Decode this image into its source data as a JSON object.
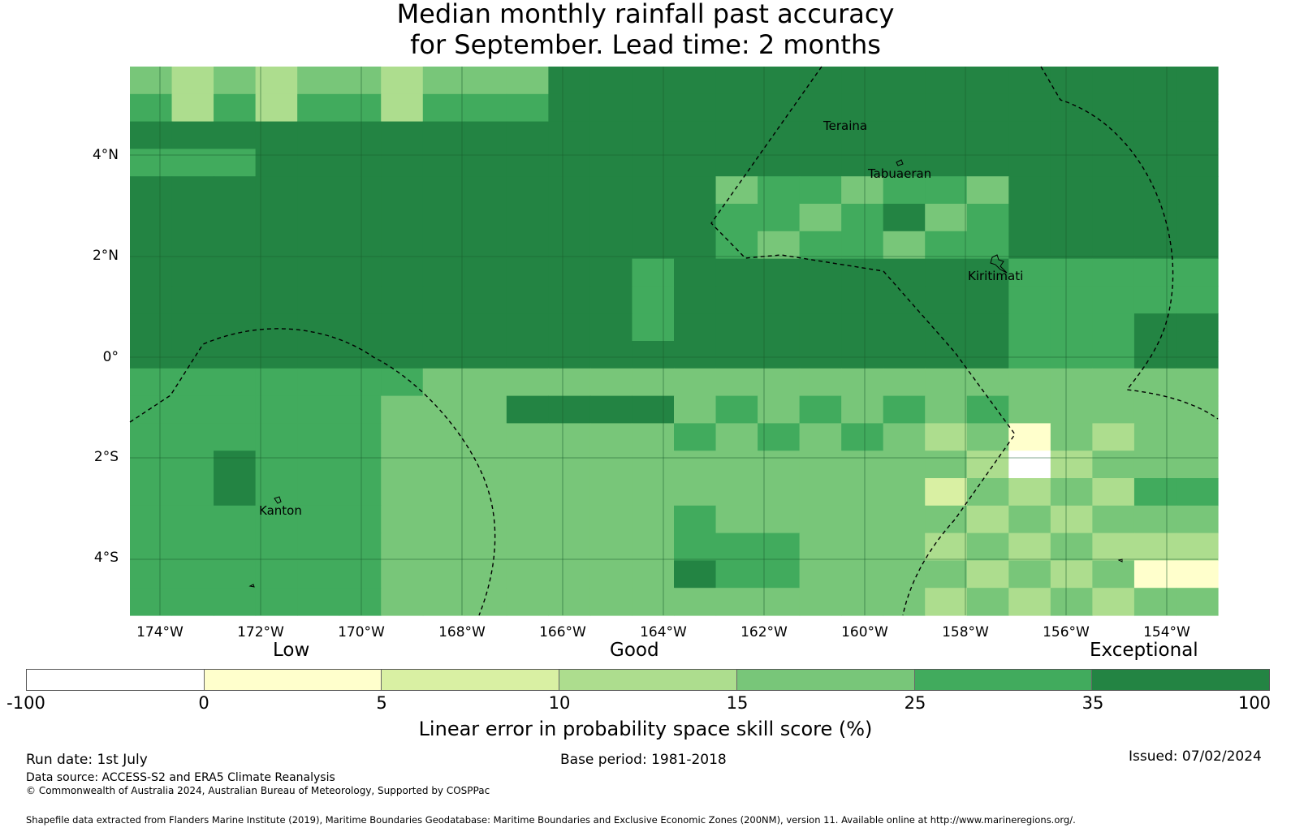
{
  "title_line1": "Median monthly rainfall past accuracy",
  "title_line2": "for September. Lead time: 2 months",
  "lat_labels": [
    "4°N",
    "2°N",
    "0°",
    "2°S",
    "4°S"
  ],
  "lon_labels": [
    "174°W",
    "172°W",
    "170°W",
    "168°W",
    "166°W",
    "164°W",
    "162°W",
    "160°W",
    "158°W",
    "156°W",
    "154°W"
  ],
  "places": [
    "Teraina",
    "Tabuaeran",
    "Kiritimati",
    "Kanton"
  ],
  "colorbar": {
    "category_low": "Low",
    "category_good": "Good",
    "category_exceptional": "Exceptional",
    "ticks": [
      "-100",
      "0",
      "5",
      "10",
      "15",
      "25",
      "35",
      "100"
    ],
    "colors": [
      "#ffffff",
      "#ffffcc",
      "#d9f0a3",
      "#addd8e",
      "#78c679",
      "#41ab5d",
      "#238443"
    ],
    "label": "Linear error in probability space skill score (%)"
  },
  "footer": {
    "run_date": "Run date: 1st July",
    "base_period": "Base period: 1981-2018",
    "issued": "Issued: 07/02/2024",
    "data_source": "Data source: ACCESS-S2 and ERA5 Climate Reanalysis",
    "copyright": "© Commonwealth of Australia 2024, Australian Bureau of Meteorology, Supported by COSPPac",
    "shapefile": "Shapefile data extracted from Flanders Marine Institute (2019), Maritime Boundaries Geodatabase: Maritime Boundaries and Exclusive Economic Zones (200NM), version 11. Available online at http://www.marineregions.org/."
  }
}
